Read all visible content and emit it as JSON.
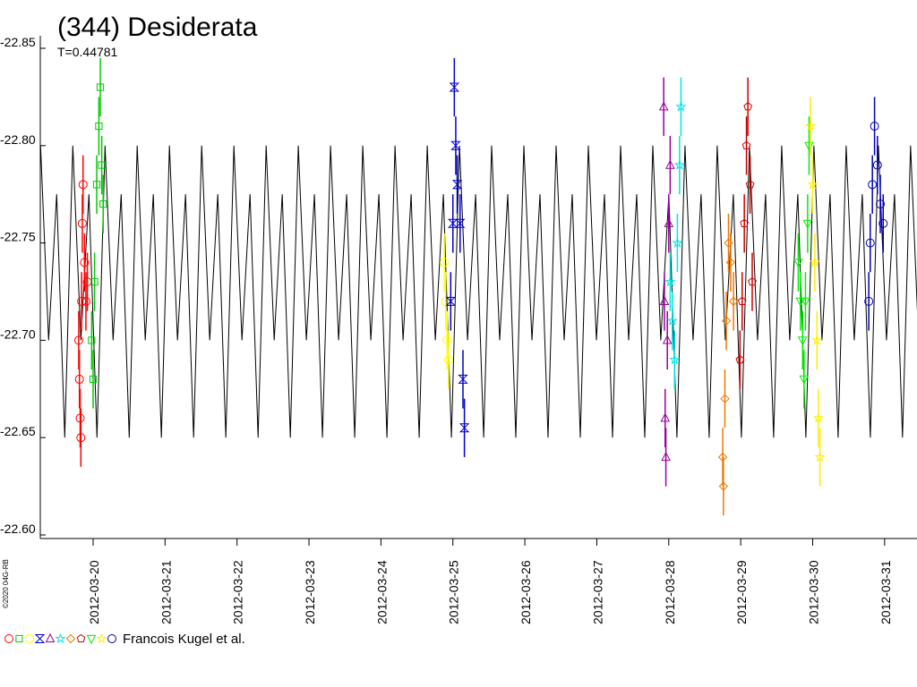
{
  "chart_data": {
    "type": "scatter",
    "title": "(344) Desiderata",
    "subtitle": "T=0.44781",
    "credit": "©2020 04G-RB",
    "legend_text": "Francois Kugel et al.",
    "invert_y": true,
    "xlim": [
      19.266,
      31.45
    ],
    "ylim": [
      -22.85,
      -22.6
    ],
    "yticks": [
      -22.85,
      {
        "value": -22.8,
        "label": "-22.80"
      },
      -22.75,
      {
        "value": -22.7,
        "label": "-22.70"
      },
      -22.65,
      {
        "value": -22.6,
        "label": "-22.60"
      }
    ],
    "xticks": [
      {
        "value": 20,
        "label": "2012-03-20"
      },
      {
        "value": 21,
        "label": "2012-03-21"
      },
      {
        "value": 22,
        "label": "2012-03-22"
      },
      {
        "value": 23,
        "label": "2012-03-23"
      },
      {
        "value": 24,
        "label": "2012-03-24"
      },
      {
        "value": 25,
        "label": "2012-03-25"
      },
      {
        "value": 26,
        "label": "2012-03-26"
      },
      {
        "value": 27,
        "label": "2012-03-27"
      },
      {
        "value": 28,
        "label": "2012-03-28"
      },
      {
        "value": 29,
        "label": "2012-03-29"
      },
      {
        "value": 30,
        "label": "2012-03-30"
      },
      {
        "value": 31,
        "label": "2012-03-31"
      }
    ],
    "curve": {
      "color": "#000000",
      "x": [
        19.27,
        19.382,
        19.494,
        19.606,
        19.718,
        19.83,
        19.942,
        20.054,
        20.166,
        20.278,
        20.39,
        20.502,
        20.613,
        20.725,
        20.837,
        20.949,
        21.061,
        21.173,
        21.285,
        21.397,
        21.509,
        21.621,
        21.733,
        21.845,
        21.957,
        22.069,
        22.181,
        22.293,
        22.405,
        22.517,
        22.629,
        22.741,
        22.852,
        22.964,
        23.076,
        23.188,
        23.3,
        23.412,
        23.524,
        23.636,
        23.748,
        23.86,
        23.972,
        24.084,
        24.196,
        24.308,
        24.42,
        24.532,
        24.644,
        24.756,
        24.868,
        24.98,
        25.092,
        25.204,
        25.316,
        25.428,
        25.539,
        25.651,
        25.763,
        25.875,
        25.987,
        26.099,
        26.211,
        26.323,
        26.435,
        26.547,
        26.659,
        26.771,
        26.883,
        26.995,
        27.107,
        27.219,
        27.331,
        27.443,
        27.555,
        27.667,
        27.778,
        27.89,
        28.002,
        28.114,
        28.226,
        28.338,
        28.45,
        28.562,
        28.674,
        28.786,
        28.898,
        29.01,
        29.122,
        29.234,
        29.346,
        29.458,
        29.57,
        29.682,
        29.794,
        29.906,
        30.017,
        30.129,
        30.241,
        30.353,
        30.465,
        30.577,
        30.689,
        30.801,
        30.913,
        31.025,
        31.137,
        31.249,
        31.361,
        31.473
      ],
      "values": [
        -22.8,
        -22.7,
        -22.775,
        -22.65,
        -22.8,
        -22.7,
        -22.775,
        -22.65,
        -22.8,
        -22.7,
        -22.775,
        -22.65,
        -22.8,
        -22.7,
        -22.775,
        -22.65,
        -22.8,
        -22.7,
        -22.775,
        -22.65,
        -22.8,
        -22.7,
        -22.775,
        -22.65,
        -22.8,
        -22.7,
        -22.775,
        -22.65,
        -22.8,
        -22.7,
        -22.775,
        -22.65,
        -22.8,
        -22.7,
        -22.775,
        -22.65,
        -22.8,
        -22.7,
        -22.775,
        -22.65,
        -22.8,
        -22.7,
        -22.775,
        -22.65,
        -22.8,
        -22.7,
        -22.775,
        -22.65,
        -22.8,
        -22.7,
        -22.775,
        -22.65,
        -22.8,
        -22.7,
        -22.775,
        -22.65,
        -22.8,
        -22.7,
        -22.775,
        -22.65,
        -22.8,
        -22.7,
        -22.775,
        -22.65,
        -22.8,
        -22.7,
        -22.775,
        -22.65,
        -22.8,
        -22.7,
        -22.775,
        -22.65,
        -22.8,
        -22.7,
        -22.775,
        -22.65,
        -22.8,
        -22.7,
        -22.775,
        -22.65,
        -22.8,
        -22.7,
        -22.775,
        -22.65,
        -22.8,
        -22.7,
        -22.775,
        -22.65,
        -22.8,
        -22.7,
        -22.775,
        -22.65,
        -22.8,
        -22.7,
        -22.775,
        -22.65,
        -22.8,
        -22.7,
        -22.775,
        -22.65,
        -22.8,
        -22.7,
        -22.775,
        -22.65,
        -22.8,
        -22.7,
        -22.775,
        -22.65,
        -22.8,
        -22.7
      ]
    },
    "series": [
      {
        "color": "#ff0000",
        "marker": "circle",
        "error": 0.015,
        "x": [
          19.8,
          19.81,
          19.82,
          19.83,
          19.84,
          19.85,
          19.86,
          19.88,
          19.9,
          19.92
        ],
        "values": [
          -22.7,
          -22.68,
          -22.66,
          -22.65,
          -22.72,
          -22.76,
          -22.78,
          -22.74,
          -22.72,
          -22.73
        ]
      },
      {
        "color": "#00cc00",
        "marker": "square",
        "error": 0.015,
        "x": [
          19.98,
          20.0,
          20.02,
          20.05,
          20.08,
          20.1,
          20.12,
          20.14
        ],
        "values": [
          -22.7,
          -22.68,
          -22.73,
          -22.78,
          -22.81,
          -22.83,
          -22.79,
          -22.77
        ]
      },
      {
        "color": "#ffff00",
        "marker": "circle",
        "error": 0.015,
        "x": [
          24.88,
          24.9,
          24.92,
          24.94
        ],
        "values": [
          -22.74,
          -22.72,
          -22.7,
          -22.69
        ]
      },
      {
        "color": "#0000cc",
        "marker": "bowtie",
        "error": 0.015,
        "x": [
          24.97,
          25.0,
          25.02,
          25.04,
          25.06,
          25.1,
          25.14,
          25.16
        ],
        "values": [
          -22.72,
          -22.76,
          -22.83,
          -22.8,
          -22.78,
          -22.76,
          -22.68,
          -22.655
        ]
      },
      {
        "color": "#990099",
        "marker": "triangle",
        "error": 0.015,
        "x": [
          27.93,
          27.94,
          27.95,
          27.96,
          27.98,
          28.0,
          28.02
        ],
        "values": [
          -22.82,
          -22.72,
          -22.66,
          -22.64,
          -22.7,
          -22.76,
          -22.79
        ]
      },
      {
        "color": "#00e5e5",
        "marker": "star",
        "error": 0.015,
        "x": [
          28.02,
          28.05,
          28.08,
          28.12,
          28.15,
          28.17
        ],
        "values": [
          -22.73,
          -22.71,
          -22.69,
          -22.75,
          -22.79,
          -22.82
        ]
      },
      {
        "color": "#ee7700",
        "marker": "diamond",
        "error": 0.015,
        "x": [
          28.75,
          28.76,
          28.78,
          28.8,
          28.83,
          28.86,
          28.9
        ],
        "values": [
          -22.64,
          -22.625,
          -22.67,
          -22.71,
          -22.75,
          -22.74,
          -22.72
        ]
      },
      {
        "color": "#cc0000",
        "marker": "pentagon",
        "error": 0.015,
        "x": [
          28.99,
          29.02,
          29.05,
          29.08,
          29.1,
          29.13,
          29.16
        ],
        "values": [
          -22.69,
          -22.72,
          -22.76,
          -22.8,
          -22.82,
          -22.78,
          -22.73
        ]
      },
      {
        "color": "#00ee00",
        "marker": "triangle-down",
        "error": 0.015,
        "x": [
          29.8,
          29.83,
          29.86,
          29.88,
          29.9,
          29.93,
          29.95
        ],
        "values": [
          -22.74,
          -22.72,
          -22.7,
          -22.68,
          -22.72,
          -22.76,
          -22.8
        ]
      },
      {
        "color": "#ffee00",
        "marker": "star",
        "error": 0.015,
        "x": [
          29.97,
          30.0,
          30.03,
          30.06,
          30.08,
          30.1
        ],
        "values": [
          -22.81,
          -22.78,
          -22.74,
          -22.7,
          -22.66,
          -22.64
        ]
      },
      {
        "color": "#0000bb",
        "marker": "circle",
        "error": 0.015,
        "x": [
          30.78,
          30.8,
          30.83,
          30.86,
          30.9,
          30.94,
          30.98
        ],
        "values": [
          -22.72,
          -22.75,
          -22.78,
          -22.81,
          -22.79,
          -22.77,
          -22.76
        ]
      }
    ]
  }
}
